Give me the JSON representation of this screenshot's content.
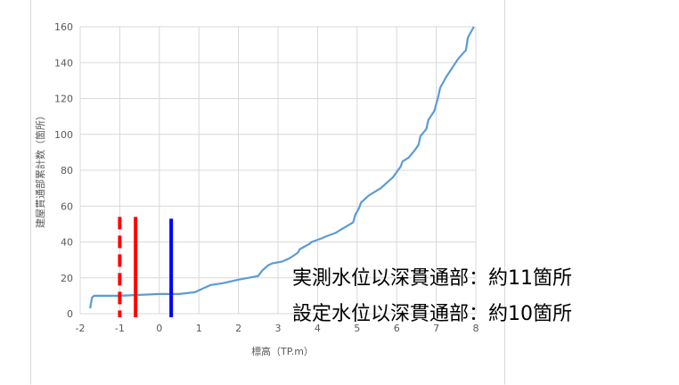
{
  "chart_data": {
    "type": "line",
    "xlabel": "標高（TP.m）",
    "ylabel": "建屋貫通部累計数（箇所）",
    "xlim": [
      -2,
      8
    ],
    "ylim": [
      0,
      160
    ],
    "x_ticks": [
      -2,
      -1,
      0,
      1,
      2,
      3,
      4,
      5,
      6,
      7,
      8
    ],
    "y_ticks": [
      0,
      20,
      40,
      60,
      80,
      100,
      120,
      140,
      160
    ],
    "grid": true,
    "series": [
      {
        "color": "#5b9bd5",
        "x": [
          -1.75,
          -1.7,
          -1.65,
          -1.0,
          0.0,
          0.5,
          0.9,
          1.1,
          1.3,
          1.6,
          2.0,
          2.5,
          2.6,
          2.75,
          2.85,
          3.1,
          3.3,
          3.5,
          3.55,
          3.8,
          3.85,
          4.1,
          4.2,
          4.45,
          4.6,
          4.75,
          4.9,
          4.95,
          5.05,
          5.1,
          5.3,
          5.6,
          5.8,
          5.9,
          6.0,
          6.1,
          6.15,
          6.3,
          6.45,
          6.55,
          6.6,
          6.75,
          6.8,
          6.95,
          7.05,
          7.1,
          7.25,
          7.4,
          7.55,
          7.75,
          7.8,
          7.95
        ],
        "y": [
          3,
          9,
          10,
          10,
          11,
          11,
          12,
          14,
          16,
          17,
          19,
          21,
          24,
          27,
          28,
          29,
          31,
          34,
          36,
          39,
          40,
          42,
          43,
          45,
          47,
          49,
          51,
          55,
          59,
          62,
          66,
          70,
          74,
          76,
          79,
          82,
          85,
          87,
          91,
          94,
          99,
          103,
          108,
          113,
          121,
          126,
          132,
          137,
          142,
          147,
          154,
          160
        ]
      }
    ],
    "vlines": [
      {
        "x": -1.0,
        "color": "#ff0000",
        "style": "dashed",
        "y_top": 54
      },
      {
        "x": -0.6,
        "color": "#ff0000",
        "style": "solid",
        "y_top": 54
      },
      {
        "x": 0.3,
        "color": "#0000ff",
        "style": "solid",
        "y_top": 53
      }
    ],
    "annotations": [
      "実測水位以深貫通部：約11箇所",
      "設定水位以深貫通部：約10箇所"
    ]
  }
}
